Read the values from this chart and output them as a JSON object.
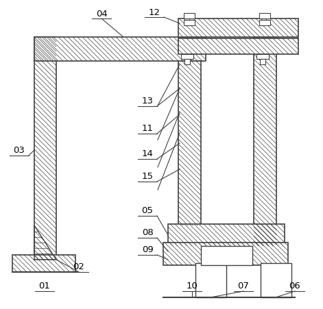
{
  "figsize": [
    4.71,
    4.52
  ],
  "dpi": 100,
  "line_color": "#404040",
  "bg_color": "#ffffff"
}
